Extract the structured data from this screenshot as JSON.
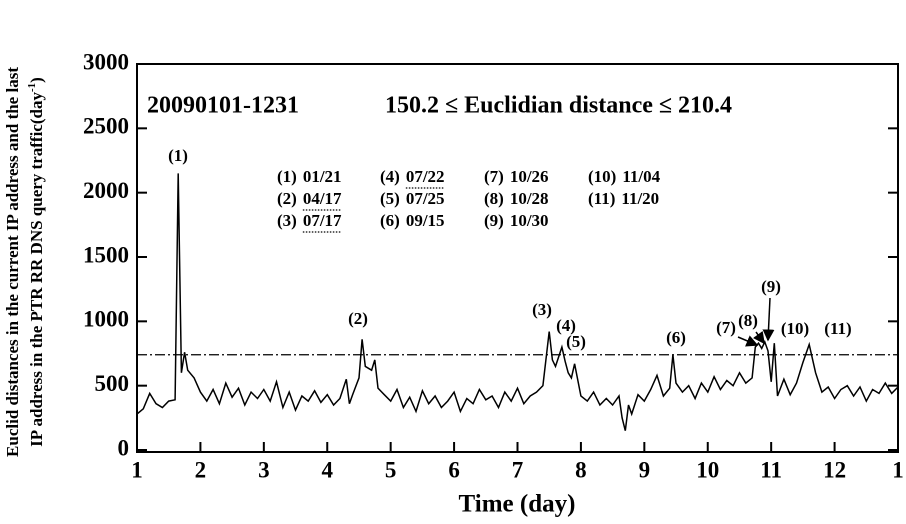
{
  "chart_data": {
    "type": "line",
    "header": "20090101-1231",
    "subtitle": "150.2 ≤ Euclidian distance ≤ 210.4",
    "x_label": "Time (day)",
    "y_label": {
      "line1": "Euclid distances in the current IP address and the last",
      "line2": "IP address in the PTR RR DNS query traffic(day",
      "superscript": "-1",
      "closing": ")"
    },
    "xlim": [
      1,
      13
    ],
    "xticks": [
      1,
      2,
      3,
      4,
      5,
      6,
      7,
      8,
      9,
      10,
      11,
      12,
      {
        "value": 13,
        "label": "1"
      }
    ],
    "ylim": [
      0,
      3000
    ],
    "yticks": [
      0,
      500,
      1000,
      1500,
      2000,
      2500,
      3000
    ],
    "threshold": 740,
    "series": [
      {
        "color": "#000000",
        "x": [
          1.0,
          1.1,
          1.2,
          1.3,
          1.4,
          1.5,
          1.6,
          1.65,
          1.7,
          1.75,
          1.8,
          1.9,
          2.0,
          2.1,
          2.2,
          2.3,
          2.4,
          2.5,
          2.6,
          2.7,
          2.8,
          2.9,
          3.0,
          3.1,
          3.2,
          3.3,
          3.4,
          3.5,
          3.6,
          3.7,
          3.8,
          3.9,
          4.0,
          4.1,
          4.2,
          4.3,
          4.35,
          4.4,
          4.5,
          4.55,
          4.6,
          4.7,
          4.75,
          4.8,
          4.9,
          5.0,
          5.1,
          5.2,
          5.3,
          5.4,
          5.5,
          5.6,
          5.7,
          5.8,
          5.9,
          6.0,
          6.1,
          6.2,
          6.3,
          6.4,
          6.5,
          6.6,
          6.7,
          6.8,
          6.9,
          7.0,
          7.1,
          7.2,
          7.3,
          7.4,
          7.5,
          7.55,
          7.6,
          7.7,
          7.75,
          7.8,
          7.85,
          7.9,
          8.0,
          8.1,
          8.2,
          8.3,
          8.4,
          8.5,
          8.6,
          8.65,
          8.7,
          8.75,
          8.8,
          8.9,
          9.0,
          9.1,
          9.2,
          9.3,
          9.4,
          9.45,
          9.5,
          9.6,
          9.7,
          9.8,
          9.9,
          10.0,
          10.1,
          10.2,
          10.3,
          10.4,
          10.5,
          10.6,
          10.7,
          10.75,
          10.8,
          10.85,
          10.9,
          10.95,
          11.0,
          11.05,
          11.1,
          11.2,
          11.3,
          11.4,
          11.5,
          11.6,
          11.7,
          11.8,
          11.9,
          12.0,
          12.1,
          12.2,
          12.3,
          12.4,
          12.5,
          12.6,
          12.7,
          12.8,
          12.9,
          13.0
        ],
        "values": [
          280,
          320,
          440,
          360,
          330,
          380,
          390,
          2150,
          600,
          760,
          620,
          560,
          450,
          380,
          470,
          360,
          520,
          410,
          480,
          350,
          450,
          400,
          470,
          380,
          530,
          330,
          450,
          310,
          420,
          380,
          460,
          370,
          430,
          350,
          400,
          550,
          360,
          430,
          560,
          860,
          650,
          620,
          700,
          480,
          430,
          380,
          470,
          330,
          410,
          300,
          460,
          360,
          420,
          330,
          380,
          450,
          300,
          400,
          360,
          470,
          390,
          420,
          330,
          450,
          380,
          480,
          360,
          420,
          450,
          500,
          920,
          700,
          650,
          800,
          690,
          600,
          560,
          670,
          420,
          380,
          450,
          350,
          400,
          350,
          420,
          250,
          150,
          350,
          280,
          430,
          380,
          470,
          580,
          420,
          480,
          740,
          520,
          450,
          500,
          400,
          520,
          450,
          570,
          470,
          540,
          500,
          600,
          520,
          560,
          800,
          830,
          790,
          840,
          770,
          530,
          830,
          420,
          550,
          430,
          520,
          680,
          820,
          600,
          450,
          490,
          400,
          470,
          500,
          420,
          490,
          380,
          470,
          440,
          520,
          440,
          490
        ]
      }
    ],
    "peak_labels": [
      "(1)",
      "(2)",
      "(3)",
      "(4)",
      "(5)",
      "(6)",
      "(7)",
      "(8)",
      "(9)",
      "(10)",
      "(11)"
    ],
    "dates": [
      {
        "label": "(1)",
        "date": "01/21",
        "underlined": false
      },
      {
        "label": "(2)",
        "date": "04/17",
        "underlined": true
      },
      {
        "label": "(3)",
        "date": "07/17",
        "underlined": true
      },
      {
        "label": "(4)",
        "date": "07/22",
        "underlined": true
      },
      {
        "label": "(5)",
        "date": "07/25",
        "underlined": false
      },
      {
        "label": "(6)",
        "date": "09/15",
        "underlined": false
      },
      {
        "label": "(7)",
        "date": "10/26",
        "underlined": false
      },
      {
        "label": "(8)",
        "date": "10/28",
        "underlined": false
      },
      {
        "label": "(9)",
        "date": "10/30",
        "underlined": false
      },
      {
        "label": "(10)",
        "date": "11/04",
        "underlined": false
      },
      {
        "label": "(11)",
        "date": "11/20",
        "underlined": false
      }
    ]
  }
}
